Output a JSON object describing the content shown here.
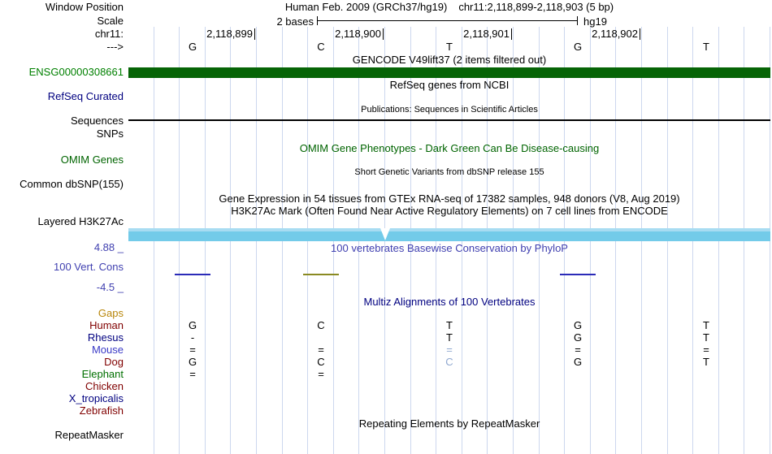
{
  "header": {
    "window_position_label": "Window Position",
    "assembly": "Human Feb. 2009 (GRCh37/hg19)",
    "position": "chr11:2,118,899-2,118,903 (5 bp)",
    "scale_label": "Scale",
    "scale_value": "2 bases",
    "assembly_short": "hg19",
    "chrom_label": "chr11:",
    "strand_label": "--->",
    "coords": [
      "2,118,899",
      "2,118,900",
      "2,118,901",
      "2,118,902"
    ],
    "bases": [
      "G",
      "C",
      "T",
      "G",
      "T"
    ]
  },
  "tracks": {
    "gencode": {
      "title": "GENCODE V49lift37 (2 items filtered out)",
      "item_label": "ENSG00000308661",
      "item_color": "#066406"
    },
    "refseq": {
      "title": "RefSeq genes from NCBI",
      "label": "RefSeq Curated"
    },
    "publications": {
      "title": "Publications: Sequences in Scientific Articles",
      "label_sequences": "Sequences",
      "label_snps": "SNPs",
      "item_color": "#000000"
    },
    "omim": {
      "title": "OMIM Gene Phenotypes - Dark Green Can Be Disease-causing",
      "label": "OMIM Genes",
      "color": "#006400"
    },
    "dbsnp": {
      "title": "Short Genetic Variants from dbSNP release 155",
      "label": "Common dbSNP(155)"
    },
    "gtex": {
      "title": "Gene Expression in 54 tissues from GTEx RNA-seq of 17382 samples, 948 donors (V8, Aug 2019)"
    },
    "h3k27ac": {
      "title": "H3K27Ac Mark (Often Found Near Active Regulatory Elements) on 7 cell lines from ENCODE",
      "label": "Layered H3K27Ac",
      "color_main": "#73CBE9",
      "color_light": "#A8DCF2"
    },
    "conservation": {
      "title": "100 vertebrates Basewise Conservation by PhyloP",
      "label": "100 Vert. Cons",
      "scale_max": "4.88 _",
      "scale_min": "-4.5 _",
      "color": "#4040B0",
      "marks": [
        {
          "base_index": 0,
          "color": "#2B2BB8"
        },
        {
          "base_index": 1,
          "color": "#8A8A22"
        },
        {
          "base_index": 3,
          "color": "#2B2BB8"
        }
      ]
    },
    "multiz": {
      "title": "Multiz Alignments of 100 Vertebrates",
      "gaps_label": "Gaps",
      "mismatch_color": "#8FA8D0",
      "rows": [
        {
          "name": "Human",
          "color": "#800000",
          "cells": [
            "G",
            "C",
            "T",
            "G",
            "T"
          ],
          "light": []
        },
        {
          "name": "Rhesus",
          "color": "#000080",
          "cells": [
            "-",
            "",
            "T",
            "G",
            "T"
          ],
          "light": []
        },
        {
          "name": "Mouse",
          "color": "#3939C6",
          "cells": [
            "=",
            "=",
            "=",
            "=",
            "="
          ],
          "light": [
            2
          ]
        },
        {
          "name": "Dog",
          "color": "#800000",
          "cells": [
            "G",
            "C",
            "C",
            "G",
            "T"
          ],
          "light": [
            2
          ]
        },
        {
          "name": "Elephant",
          "color": "#007000",
          "cells": [
            "=",
            "=",
            "",
            "",
            ""
          ],
          "light": []
        },
        {
          "name": "Chicken",
          "color": "#800000",
          "cells": [
            "",
            "",
            "",
            "",
            ""
          ],
          "light": []
        },
        {
          "name": "X_tropicalis",
          "color": "#000080",
          "cells": [
            "",
            "",
            "",
            "",
            ""
          ],
          "light": []
        },
        {
          "name": "Zebrafish",
          "color": "#800000",
          "cells": [
            "",
            "",
            "",
            "",
            ""
          ],
          "light": []
        }
      ]
    },
    "repeatmasker": {
      "title": "Repeating Elements by RepeatMasker",
      "label": "RepeatMasker"
    }
  }
}
